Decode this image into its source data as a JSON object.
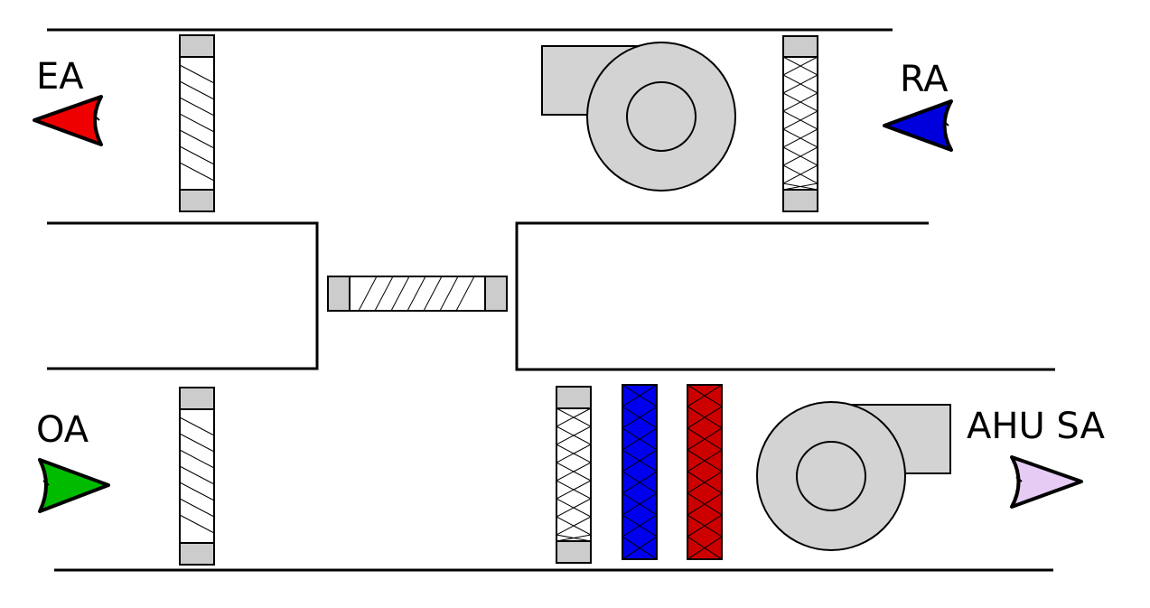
{
  "labels": {
    "exhaust_air": "EA",
    "return_air": "RA",
    "outdoor_air": "OA",
    "supply_air": "AHU SA"
  },
  "colors": {
    "exhaust_air_arrow": "#ee0000",
    "return_air_arrow": "#0000dd",
    "outdoor_air_arrow": "#00bb00",
    "supply_air_arrow": "#e6ccf5",
    "cooling_coil": "#0000ee",
    "heating_coil": "#cc0000",
    "equipment_grey": "#d3d3d3"
  },
  "icons": {
    "exhaust_damper": "damper-icon",
    "return_fan": "fan-icon",
    "return_filter": "filter-icon",
    "mixing_damper": "damper-icon",
    "outdoor_damper": "damper-icon",
    "supply_filter": "filter-icon",
    "cooling_coil": "coil-icon",
    "heating_coil": "coil-icon",
    "supply_fan": "fan-icon"
  }
}
